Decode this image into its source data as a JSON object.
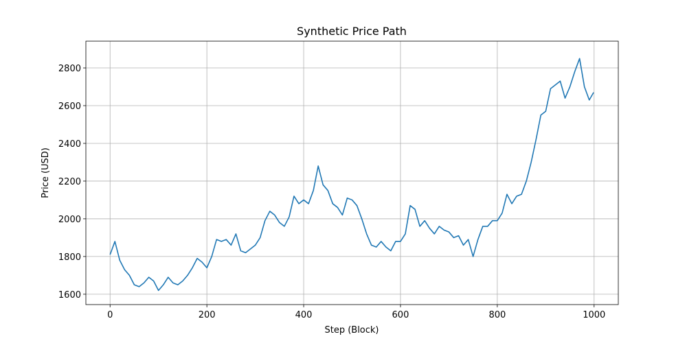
{
  "chart_data": {
    "type": "line",
    "title": "Synthetic Price Path",
    "x_label": "Step (Block)",
    "y_label": "Price (USD)",
    "x": [
      0,
      10,
      20,
      30,
      40,
      50,
      60,
      70,
      80,
      90,
      100,
      110,
      120,
      130,
      140,
      150,
      160,
      170,
      180,
      190,
      200,
      210,
      220,
      230,
      240,
      250,
      260,
      270,
      280,
      290,
      300,
      310,
      320,
      330,
      340,
      350,
      360,
      370,
      380,
      390,
      400,
      410,
      420,
      430,
      440,
      450,
      460,
      470,
      480,
      490,
      500,
      510,
      520,
      530,
      540,
      550,
      560,
      570,
      580,
      590,
      600,
      610,
      620,
      630,
      640,
      650,
      660,
      670,
      680,
      690,
      700,
      710,
      720,
      730,
      740,
      750,
      760,
      770,
      780,
      790,
      800,
      810,
      820,
      830,
      840,
      850,
      860,
      870,
      880,
      890,
      900,
      910,
      920,
      930,
      940,
      950,
      960,
      970,
      980,
      990,
      999
    ],
    "series": [
      {
        "name": "Price",
        "color": "#1f77b4",
        "values": [
          1810,
          1880,
          1780,
          1730,
          1700,
          1650,
          1640,
          1660,
          1690,
          1670,
          1620,
          1650,
          1690,
          1660,
          1650,
          1670,
          1700,
          1740,
          1790,
          1770,
          1740,
          1800,
          1890,
          1880,
          1890,
          1860,
          1920,
          1830,
          1820,
          1840,
          1860,
          1900,
          1990,
          2040,
          2020,
          1980,
          1960,
          2010,
          2120,
          2080,
          2100,
          2080,
          2150,
          2280,
          2180,
          2150,
          2080,
          2060,
          2020,
          2110,
          2100,
          2070,
          2000,
          1920,
          1860,
          1850,
          1880,
          1850,
          1830,
          1880,
          1880,
          1920,
          2070,
          2050,
          1960,
          1990,
          1950,
          1920,
          1960,
          1940,
          1930,
          1900,
          1910,
          1860,
          1890,
          1800,
          1890,
          1960,
          1960,
          1990,
          1990,
          2030,
          2130,
          2080,
          2120,
          2130,
          2200,
          2300,
          2420,
          2550,
          2570,
          2690,
          2710,
          2730,
          2640,
          2700,
          2780,
          2850,
          2700,
          2630,
          2670
        ]
      }
    ],
    "xlim": [
      -50,
      1050
    ],
    "ylim": [
      1545,
      2942
    ],
    "xticks": [
      0,
      200,
      400,
      600,
      800,
      1000
    ],
    "yticks": [
      1600,
      1800,
      2000,
      2200,
      2400,
      2600,
      2800
    ],
    "grid": true
  }
}
